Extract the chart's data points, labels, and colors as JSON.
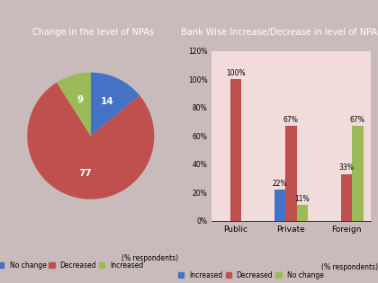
{
  "pie_title": "Change in the level of NPAs",
  "pie_values": [
    14,
    77,
    9
  ],
  "pie_colors": [
    "#4472C4",
    "#C0504D",
    "#9BBB59"
  ],
  "pie_legend_order": [
    "No change",
    "Decreased",
    "Increased"
  ],
  "pie_text_labels": [
    "14",
    "77",
    "9"
  ],
  "bar_title": "Bank Wise Increase/Decrease in level of NPAs",
  "bar_categories": [
    "Public",
    "Private",
    "Foreign"
  ],
  "bar_series": {
    "Increased": [
      0,
      22,
      0
    ],
    "Decreased": [
      100,
      67,
      33
    ],
    "No change": [
      0,
      11,
      67
    ]
  },
  "bar_colors": {
    "Increased": "#4472C4",
    "Decreased": "#C0504D",
    "No change": "#9BBB59"
  },
  "bar_ylim": [
    0,
    120
  ],
  "bar_yticks": [
    0,
    20,
    40,
    60,
    80,
    100,
    120
  ],
  "bar_ytick_labels": [
    "0%",
    "20%",
    "40%",
    "60%",
    "80%",
    "100%",
    "120%"
  ],
  "bar_annotations": {
    "Public": {
      "Increased": null,
      "Decreased": "100%",
      "No change": null
    },
    "Private": {
      "Increased": "22%",
      "Decreased": "67%",
      "No change": "11%"
    },
    "Foreign": {
      "Increased": null,
      "Decreased": "33%",
      "No change": "67%"
    }
  },
  "outer_bg": "#C9BBBB",
  "panel_bg": "#F2DCDB",
  "title_bg_color": "#1A1A1A",
  "title_text_color": "#FFFFFF",
  "footer_text": "(% respondents)",
  "title_fontsize": 7.0,
  "bar_width": 0.2,
  "annotation_fontsize": 5.5,
  "legend_fontsize": 5.5,
  "tick_fontsize": 5.5,
  "cat_fontsize": 6.5
}
